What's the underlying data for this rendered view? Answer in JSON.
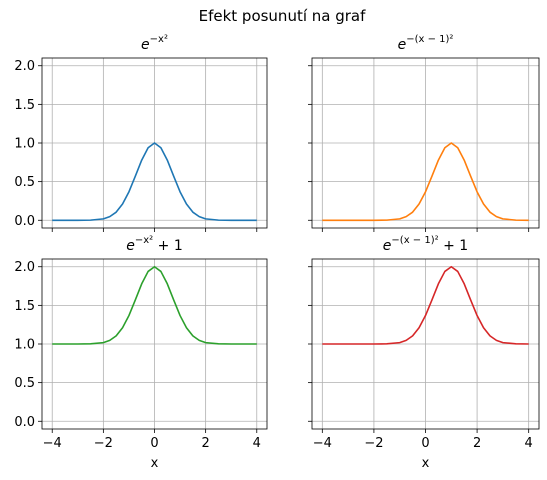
{
  "figure": {
    "suptitle": "Efekt posunutí na graf"
  },
  "colors": {
    "grid": "#b0b0b0",
    "axis": "#000000"
  },
  "chart_data": [
    {
      "type": "line",
      "title": {
        "base": "e",
        "exponent": "−x²",
        "suffix": ""
      },
      "xlabel": "",
      "xlim": [
        -4.4,
        4.4
      ],
      "ylim": [
        -0.1,
        2.1
      ],
      "xticks": [
        -4,
        -2,
        0,
        2,
        4
      ],
      "yticks": [
        0.0,
        0.5,
        1.0,
        1.5,
        2.0
      ],
      "yticklabels": [
        "0.0",
        "0.5",
        "1.0",
        "1.5",
        "2.0"
      ],
      "show_xticklabels": false,
      "show_yticklabels": true,
      "grid": true,
      "series": [
        {
          "color": "#1f77b4",
          "x": [
            -4,
            -3,
            -2.5,
            -2,
            -1.75,
            -1.5,
            -1.25,
            -1,
            -0.75,
            -0.5,
            -0.25,
            0,
            0.25,
            0.5,
            0.75,
            1,
            1.25,
            1.5,
            1.75,
            2,
            2.5,
            3,
            4
          ],
          "y": [
            0,
            0,
            0.002,
            0.018,
            0.047,
            0.105,
            0.21,
            0.368,
            0.57,
            0.779,
            0.939,
            1,
            0.939,
            0.779,
            0.57,
            0.368,
            0.21,
            0.105,
            0.047,
            0.018,
            0.002,
            0,
            0
          ]
        }
      ]
    },
    {
      "type": "line",
      "title": {
        "base": "e",
        "exponent": "−(x − 1)²",
        "suffix": ""
      },
      "xlabel": "",
      "xlim": [
        -4.4,
        4.4
      ],
      "ylim": [
        -0.1,
        2.1
      ],
      "xticks": [
        -4,
        -2,
        0,
        2,
        4
      ],
      "yticks": [
        0.0,
        0.5,
        1.0,
        1.5,
        2.0
      ],
      "yticklabels": [
        "0.0",
        "0.5",
        "1.0",
        "1.5",
        "2.0"
      ],
      "show_xticklabels": false,
      "show_yticklabels": false,
      "grid": true,
      "series": [
        {
          "color": "#ff7f0e",
          "x": [
            -4,
            -2,
            -1.5,
            -1,
            -0.75,
            -0.5,
            -0.25,
            0,
            0.25,
            0.5,
            0.75,
            1,
            1.25,
            1.5,
            1.75,
            2,
            2.25,
            2.5,
            2.75,
            3,
            3.5,
            4
          ],
          "y": [
            0,
            0,
            0.002,
            0.018,
            0.047,
            0.105,
            0.21,
            0.368,
            0.57,
            0.779,
            0.939,
            1,
            0.939,
            0.779,
            0.57,
            0.368,
            0.21,
            0.105,
            0.047,
            0.018,
            0.002,
            0
          ]
        }
      ]
    },
    {
      "type": "line",
      "title": {
        "base": "e",
        "exponent": "−x²",
        "suffix": " + 1"
      },
      "xlabel": "x",
      "xlim": [
        -4.4,
        4.4
      ],
      "ylim": [
        -0.1,
        2.1
      ],
      "xticks": [
        -4,
        -2,
        0,
        2,
        4
      ],
      "xticklabels": [
        "−4",
        "−2",
        "0",
        "2",
        "4"
      ],
      "yticks": [
        0.0,
        0.5,
        1.0,
        1.5,
        2.0
      ],
      "yticklabels": [
        "0.0",
        "0.5",
        "1.0",
        "1.5",
        "2.0"
      ],
      "show_xticklabels": true,
      "show_yticklabels": true,
      "grid": true,
      "series": [
        {
          "color": "#2ca02c",
          "x": [
            -4,
            -3,
            -2.5,
            -2,
            -1.75,
            -1.5,
            -1.25,
            -1,
            -0.75,
            -0.5,
            -0.25,
            0,
            0.25,
            0.5,
            0.75,
            1,
            1.25,
            1.5,
            1.75,
            2,
            2.5,
            3,
            4
          ],
          "y": [
            1,
            1,
            1.002,
            1.018,
            1.047,
            1.105,
            1.21,
            1.368,
            1.57,
            1.779,
            1.939,
            2,
            1.939,
            1.779,
            1.57,
            1.368,
            1.21,
            1.105,
            1.047,
            1.018,
            1.002,
            1,
            1
          ]
        }
      ]
    },
    {
      "type": "line",
      "title": {
        "base": "e",
        "exponent": "−(x − 1)²",
        "suffix": " + 1"
      },
      "xlabel": "x",
      "xlim": [
        -4.4,
        4.4
      ],
      "ylim": [
        -0.1,
        2.1
      ],
      "xticks": [
        -4,
        -2,
        0,
        2,
        4
      ],
      "xticklabels": [
        "−4",
        "−2",
        "0",
        "2",
        "4"
      ],
      "yticks": [
        0.0,
        0.5,
        1.0,
        1.5,
        2.0
      ],
      "yticklabels": [
        "0.0",
        "0.5",
        "1.0",
        "1.5",
        "2.0"
      ],
      "show_xticklabels": true,
      "show_yticklabels": false,
      "grid": true,
      "series": [
        {
          "color": "#d62728",
          "x": [
            -4,
            -2,
            -1.5,
            -1,
            -0.75,
            -0.5,
            -0.25,
            0,
            0.25,
            0.5,
            0.75,
            1,
            1.25,
            1.5,
            1.75,
            2,
            2.25,
            2.5,
            2.75,
            3,
            3.5,
            4
          ],
          "y": [
            1,
            1,
            1.002,
            1.018,
            1.047,
            1.105,
            1.21,
            1.368,
            1.57,
            1.779,
            1.939,
            2,
            1.939,
            1.779,
            1.57,
            1.368,
            1.21,
            1.105,
            1.047,
            1.018,
            1.002,
            1
          ]
        }
      ]
    }
  ]
}
